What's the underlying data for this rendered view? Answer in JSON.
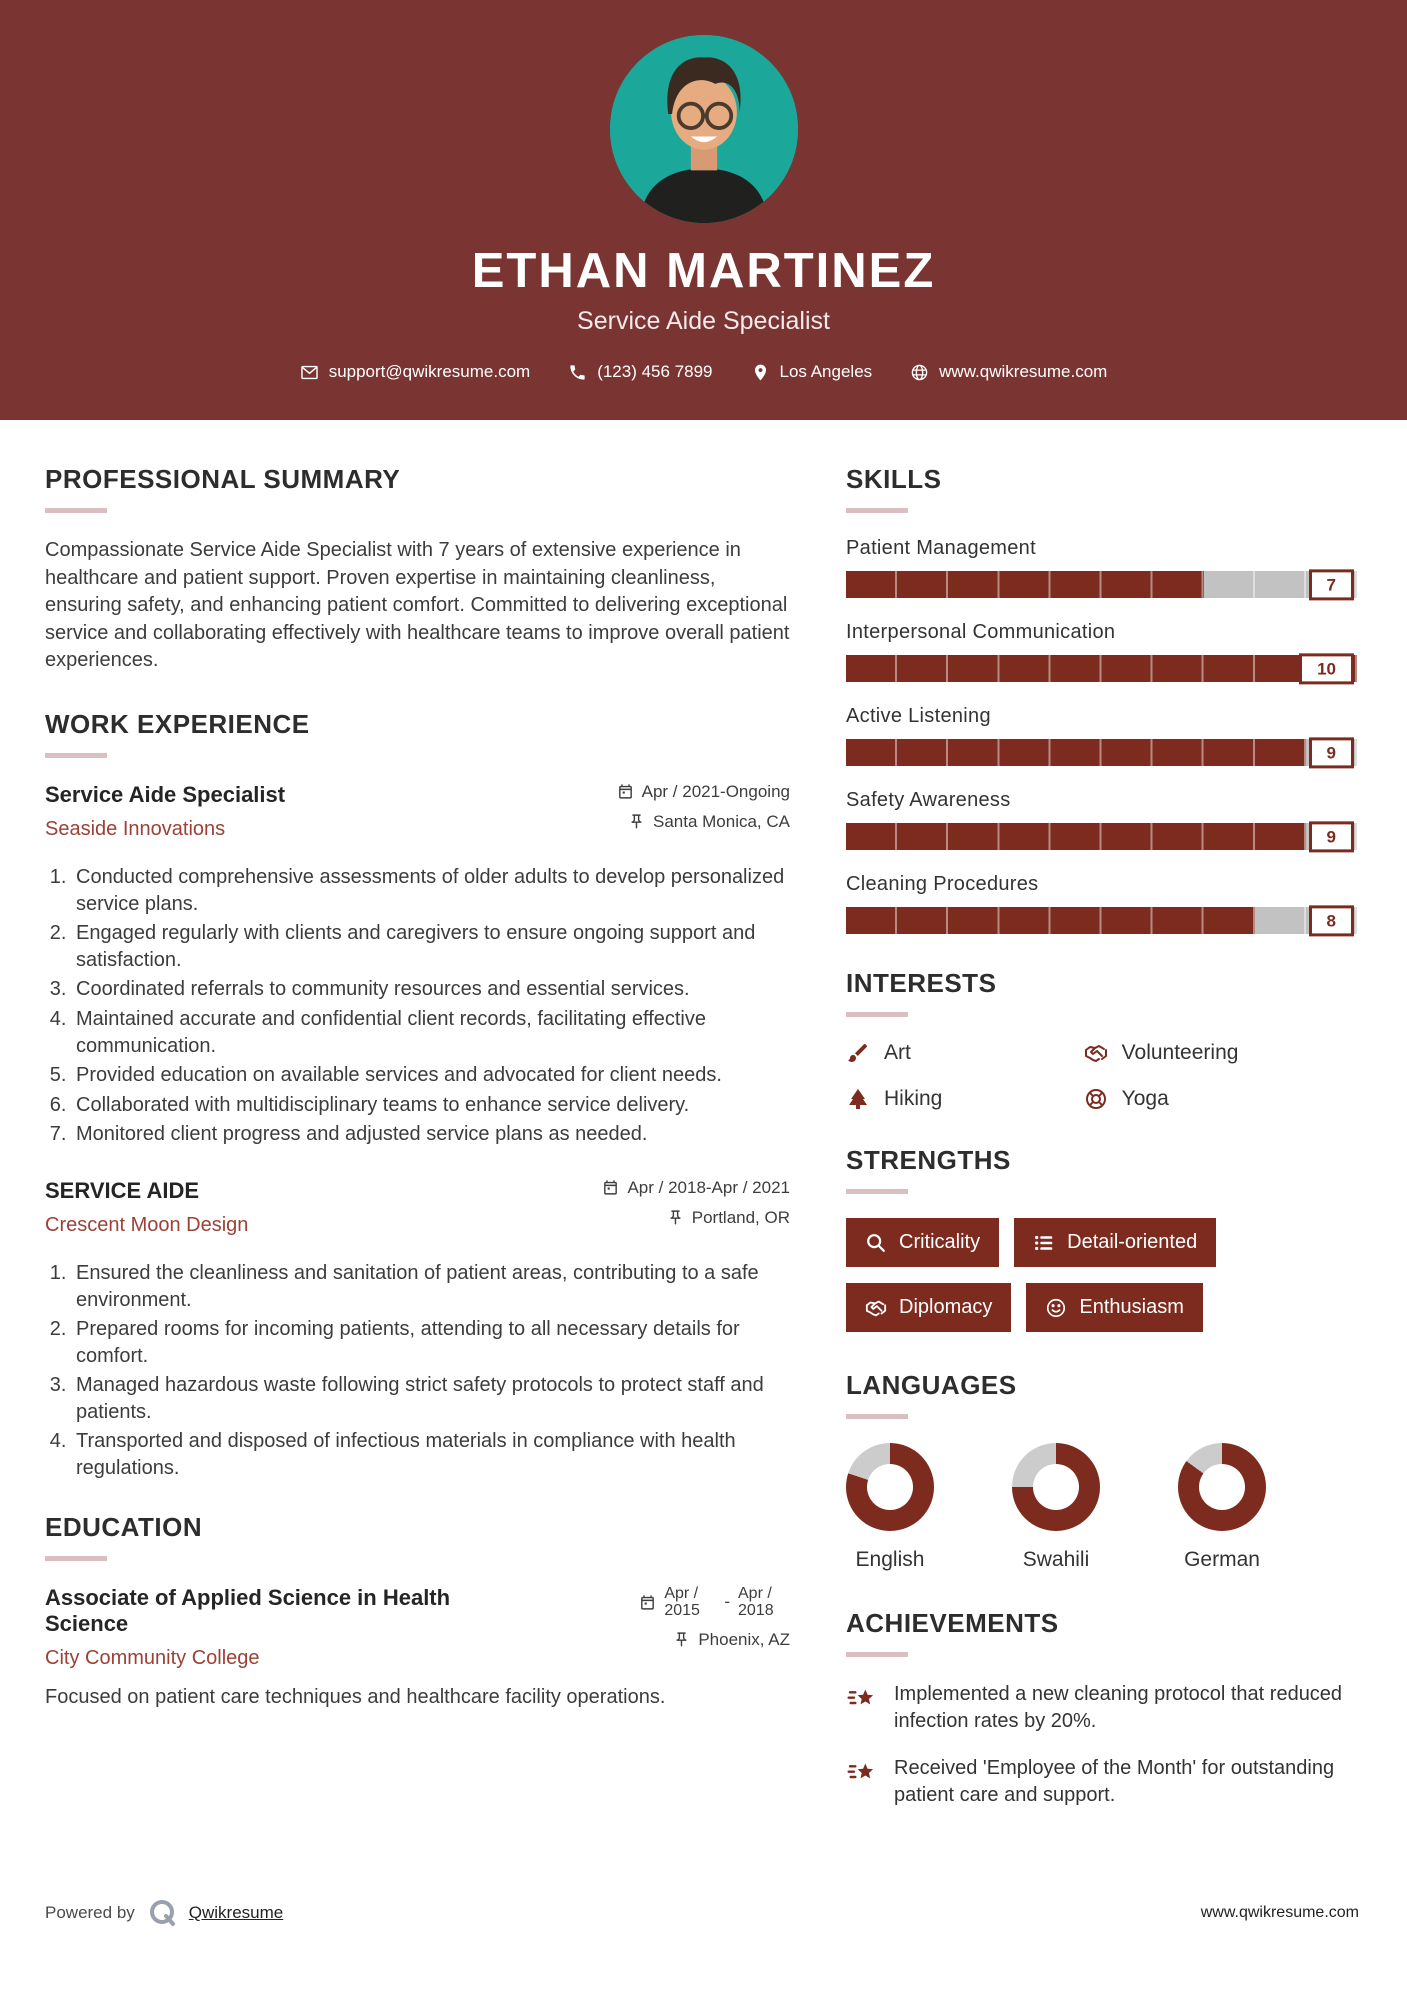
{
  "colors": {
    "header_bg": "#7a3432",
    "accent": "#7c2b1e",
    "company_text": "#9c4136",
    "avatar_bg": "#1ba89a",
    "bar_track": "#c2c2c2"
  },
  "header": {
    "name": "ETHAN MARTINEZ",
    "title": "Service Aide Specialist",
    "contacts": {
      "email": "support@qwikresume.com",
      "phone": "(123) 456 7899",
      "location": "Los Angeles",
      "website": "www.qwikresume.com"
    }
  },
  "summary": {
    "heading": "PROFESSIONAL SUMMARY",
    "text": "Compassionate Service Aide Specialist with 7 years of extensive experience in healthcare and patient support. Proven expertise in maintaining cleanliness, ensuring safety, and enhancing patient comfort. Committed to delivering exceptional service and collaborating effectively with healthcare teams to improve overall patient experiences."
  },
  "work": {
    "heading": "WORK EXPERIENCE",
    "jobs": [
      {
        "title": "Service Aide Specialist",
        "company": "Seaside Innovations",
        "date": "Apr / 2021-Ongoing",
        "location": "Santa Monica, CA",
        "bullets": [
          "Conducted comprehensive assessments of older adults to develop personalized service plans.",
          "Engaged regularly with clients and caregivers to ensure ongoing support and satisfaction.",
          "Coordinated referrals to community resources and essential services.",
          "Maintained accurate and confidential client records, facilitating effective communication.",
          "Provided education on available services and advocated for client needs.",
          "Collaborated with multidisciplinary teams to enhance service delivery.",
          "Monitored client progress and adjusted service plans as needed."
        ]
      },
      {
        "title": "SERVICE AIDE",
        "company": "Crescent Moon Design",
        "date": "Apr / 2018-Apr / 2021",
        "location": "Portland, OR",
        "bullets": [
          "Ensured the cleanliness and sanitation of patient areas, contributing to a safe environment.",
          "Prepared rooms for incoming patients, attending to all necessary details for comfort.",
          "Managed hazardous waste following strict safety protocols to protect staff and patients.",
          "Transported and disposed of infectious materials in compliance with health regulations."
        ]
      }
    ]
  },
  "education": {
    "heading": "EDUCATION",
    "degree": "Associate of Applied Science in Health Science",
    "school": "City Community College",
    "date_start": "Apr / 2015",
    "date_separator": "-",
    "date_end": "Apr / 2018",
    "location": "Phoenix, AZ",
    "description": "Focused on patient care techniques and healthcare facility operations."
  },
  "skills": {
    "heading": "SKILLS",
    "max": 10,
    "items": [
      {
        "label": "Patient Management",
        "value": 7
      },
      {
        "label": "Interpersonal Communication",
        "value": 10
      },
      {
        "label": "Active Listening",
        "value": 9
      },
      {
        "label": "Safety Awareness",
        "value": 9
      },
      {
        "label": "Cleaning Procedures",
        "value": 8
      }
    ]
  },
  "interests": {
    "heading": "INTERESTS",
    "items": [
      {
        "label": "Art",
        "icon": "paintbrush-icon"
      },
      {
        "label": "Volunteering",
        "icon": "handshake-icon"
      },
      {
        "label": "Hiking",
        "icon": "tree-icon"
      },
      {
        "label": "Yoga",
        "icon": "lifebuoy-icon"
      }
    ]
  },
  "strengths": {
    "heading": "STRENGTHS",
    "items": [
      {
        "label": "Criticality",
        "icon": "magnifier-icon"
      },
      {
        "label": "Detail-oriented",
        "icon": "list-icon"
      },
      {
        "label": "Diplomacy",
        "icon": "handshake-icon"
      },
      {
        "label": "Enthusiasm",
        "icon": "smiley-icon"
      }
    ]
  },
  "languages": {
    "heading": "LANGUAGES",
    "items": [
      {
        "label": "English",
        "percent": 80
      },
      {
        "label": "Swahili",
        "percent": 75
      },
      {
        "label": "German",
        "percent": 85
      }
    ]
  },
  "achievements": {
    "heading": "ACHIEVEMENTS",
    "items": [
      "Implemented a new cleaning protocol that reduced infection rates by 20%.",
      "Received 'Employee of the Month' for outstanding patient care and support."
    ]
  },
  "footer": {
    "powered_by": "Powered by",
    "brand": "Qwikresume",
    "site": "www.qwikresume.com"
  }
}
